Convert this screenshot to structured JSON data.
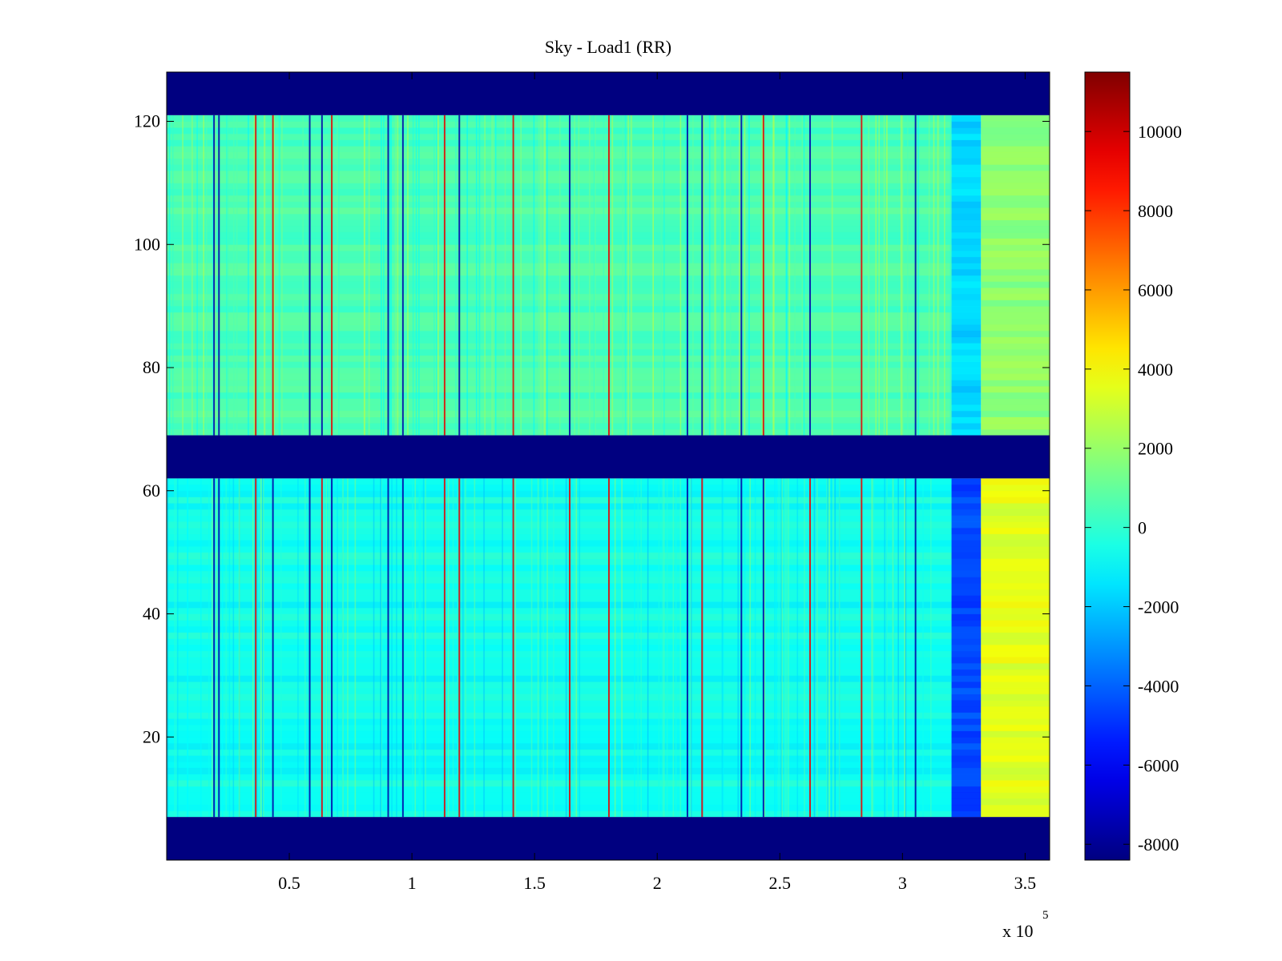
{
  "chart_data": {
    "type": "heatmap",
    "title": "Sky - Load1 (RR)",
    "xlabel": "",
    "ylabel": "",
    "x_exponent_label": "x 10",
    "x_exponent_power": "5",
    "xlim": [
      0,
      3.6
    ],
    "ylim": [
      0,
      128
    ],
    "x_ticks": [
      {
        "value": 0.5,
        "label": "0.5"
      },
      {
        "value": 1,
        "label": "1"
      },
      {
        "value": 1.5,
        "label": "1.5"
      },
      {
        "value": 2,
        "label": "2"
      },
      {
        "value": 2.5,
        "label": "2.5"
      },
      {
        "value": 3,
        "label": "3"
      },
      {
        "value": 3.5,
        "label": "3.5"
      }
    ],
    "y_ticks": [
      {
        "value": 20,
        "label": "20"
      },
      {
        "value": 40,
        "label": "40"
      },
      {
        "value": 60,
        "label": "60"
      },
      {
        "value": 80,
        "label": "80"
      },
      {
        "value": 100,
        "label": "100"
      },
      {
        "value": 120,
        "label": "120"
      }
    ],
    "colormap": "jet",
    "clim": [
      -8400,
      11500
    ],
    "colorbar_ticks": [
      {
        "value": 10000,
        "label": "10000"
      },
      {
        "value": 8000,
        "label": "8000"
      },
      {
        "value": 6000,
        "label": "6000"
      },
      {
        "value": 4000,
        "label": "4000"
      },
      {
        "value": 2000,
        "label": "2000"
      },
      {
        "value": 0,
        "label": "0"
      },
      {
        "value": -2000,
        "label": "-2000"
      },
      {
        "value": -4000,
        "label": "-4000"
      },
      {
        "value": -6000,
        "label": "-6000"
      },
      {
        "value": -8000,
        "label": "-8000"
      }
    ],
    "masked_row_bands": [
      {
        "from": 121,
        "to": 128,
        "value": -8400
      },
      {
        "from": 62,
        "to": 69,
        "value": -8400
      },
      {
        "from": 0,
        "to": 7,
        "value": -8400
      }
    ],
    "regions": [
      {
        "x": [
          0,
          3.2
        ],
        "y": [
          69,
          121
        ],
        "value": 500
      },
      {
        "x": [
          0,
          3.2
        ],
        "y": [
          7,
          62
        ],
        "value": -600
      },
      {
        "x": [
          3.2,
          3.32
        ],
        "y": [
          69,
          121
        ],
        "value": -1700
      },
      {
        "x": [
          3.2,
          3.32
        ],
        "y": [
          7,
          62
        ],
        "value": -4500
      },
      {
        "x": [
          3.32,
          3.6
        ],
        "y": [
          69,
          121
        ],
        "value": 1800
      },
      {
        "x": [
          3.32,
          3.6
        ],
        "y": [
          7,
          62
        ],
        "value": 3500
      }
    ],
    "spikes_x": [
      0.19,
      0.21,
      0.36,
      0.43,
      0.58,
      0.63,
      0.67,
      0.9,
      0.96,
      1.13,
      1.19,
      1.41,
      1.64,
      1.8,
      2.12,
      2.18,
      2.34,
      2.43,
      2.62,
      2.83,
      3.05
    ]
  }
}
